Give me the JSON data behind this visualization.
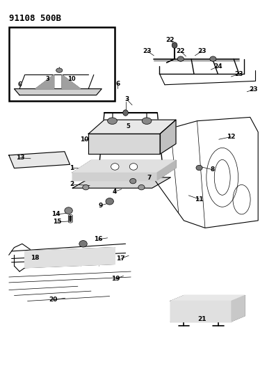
{
  "title": "91108 500B",
  "bg_color": "#ffffff",
  "line_color": "#000000",
  "title_fontsize": 9,
  "title_bold": true,
  "fig_width": 3.84,
  "fig_height": 5.33,
  "dpi": 100
}
